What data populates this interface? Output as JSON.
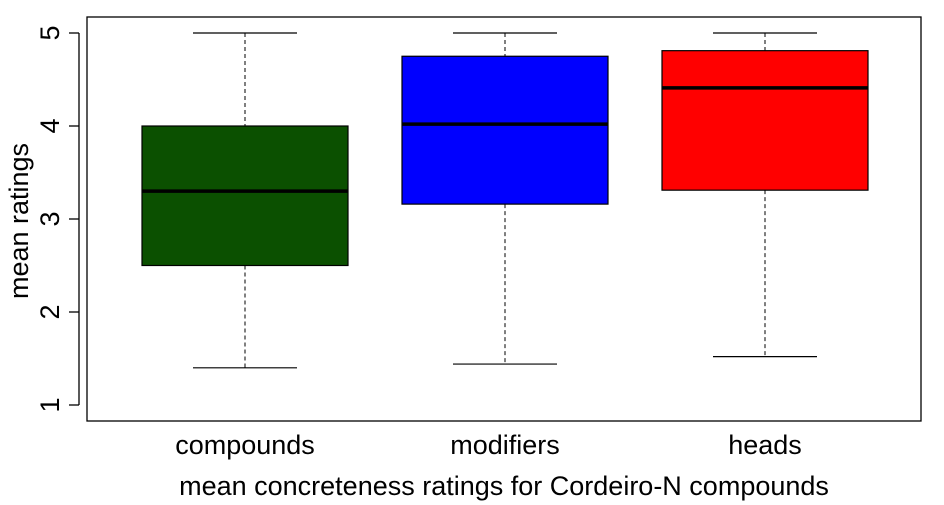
{
  "chart_data": {
    "type": "boxplot",
    "xlabel": "mean concreteness ratings for Cordeiro-N compounds",
    "ylabel": "mean ratings",
    "ylim": [
      1,
      5
    ],
    "yticks": [
      "1",
      "2",
      "3",
      "4",
      "5"
    ],
    "grid": false,
    "series": [
      {
        "name": "compounds",
        "min": 1.4,
        "q1": 2.5,
        "median": 3.3,
        "q3": 4.0,
        "max": 5.0,
        "color": "#0b5000"
      },
      {
        "name": "modifiers",
        "min": 1.44,
        "q1": 3.16,
        "median": 4.02,
        "q3": 4.75,
        "max": 5.0,
        "color": "#0000ff"
      },
      {
        "name": "heads",
        "min": 1.52,
        "q1": 3.31,
        "median": 4.41,
        "q3": 4.81,
        "max": 5.0,
        "color": "#ff0000"
      }
    ]
  }
}
